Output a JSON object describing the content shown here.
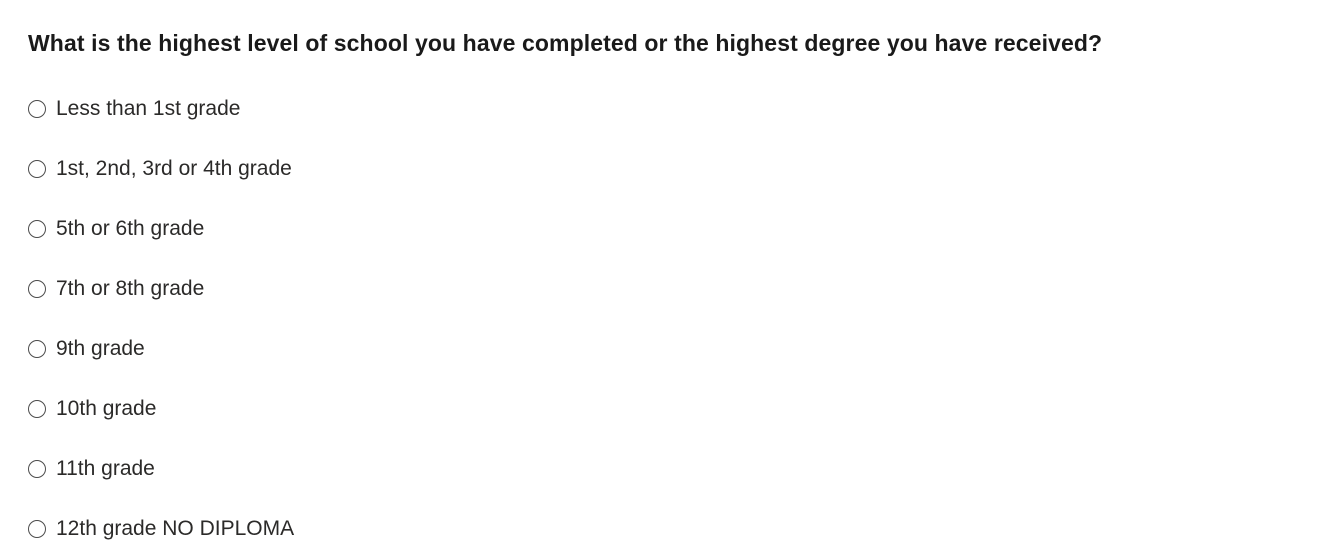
{
  "question": {
    "title": "What is the highest level of school you have completed or the highest degree you have received?",
    "options": [
      {
        "label": "Less than 1st grade"
      },
      {
        "label": "1st, 2nd, 3rd or 4th grade"
      },
      {
        "label": "5th or 6th grade"
      },
      {
        "label": "7th or 8th grade"
      },
      {
        "label": "9th grade"
      },
      {
        "label": "10th grade"
      },
      {
        "label": "11th grade"
      },
      {
        "label": "12th grade NO DIPLOMA"
      }
    ],
    "selected_index": null,
    "control_type": "radio-group"
  },
  "colors": {
    "background": "#ffffff",
    "title_text": "#1a1a1a",
    "option_text": "#2b2a29",
    "radio_border": "#4c4c4c"
  }
}
